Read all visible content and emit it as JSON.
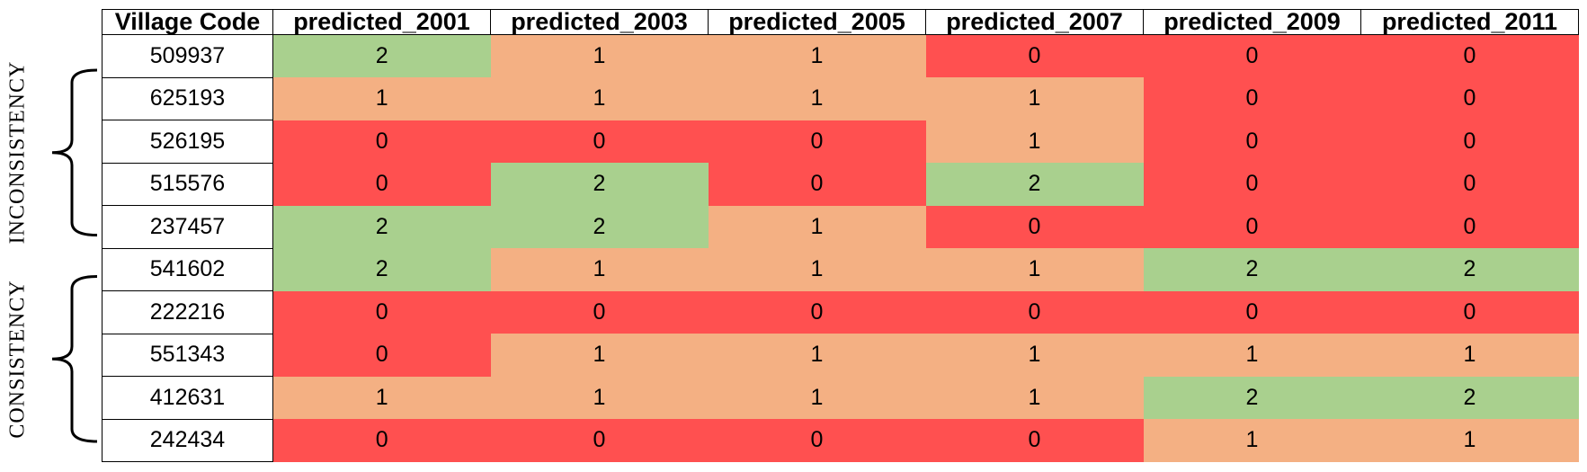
{
  "colors": {
    "0": "#ff5050",
    "1": "#f4b083",
    "2": "#a9d08e"
  },
  "groups": [
    {
      "label": "INCONSISTENCY"
    },
    {
      "label": "CONSISTENCY"
    }
  ],
  "chart_data": {
    "type": "table",
    "columns": [
      "Village Code",
      "predicted_2001",
      "predicted_2003",
      "predicted_2005",
      "predicted_2007",
      "predicted_2009",
      "predicted_2011"
    ],
    "rows": [
      {
        "code": "509937",
        "values": [
          2,
          1,
          1,
          0,
          0,
          0
        ]
      },
      {
        "code": "625193",
        "values": [
          1,
          1,
          1,
          1,
          0,
          0
        ]
      },
      {
        "code": "526195",
        "values": [
          0,
          0,
          0,
          1,
          0,
          0
        ]
      },
      {
        "code": "515576",
        "values": [
          0,
          2,
          0,
          2,
          0,
          0
        ]
      },
      {
        "code": "237457",
        "values": [
          2,
          2,
          1,
          0,
          0,
          0
        ]
      },
      {
        "code": "541602",
        "values": [
          2,
          1,
          1,
          1,
          2,
          2
        ]
      },
      {
        "code": "222216",
        "values": [
          0,
          0,
          0,
          0,
          0,
          0
        ]
      },
      {
        "code": "551343",
        "values": [
          0,
          1,
          1,
          1,
          1,
          1
        ]
      },
      {
        "code": "412631",
        "values": [
          1,
          1,
          1,
          1,
          2,
          2
        ]
      },
      {
        "code": "242434",
        "values": [
          0,
          0,
          0,
          0,
          1,
          1
        ]
      }
    ]
  }
}
